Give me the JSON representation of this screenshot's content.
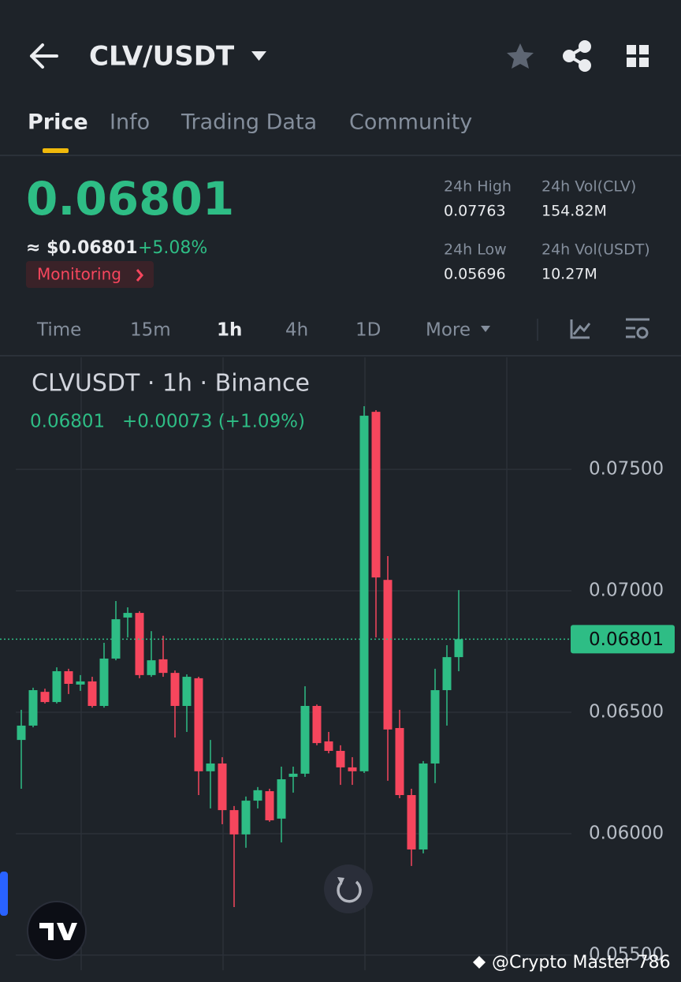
{
  "header": {
    "pair": "CLV/USDT"
  },
  "tabs": [
    "Price",
    "Info",
    "Trading Data",
    "Community"
  ],
  "price": {
    "last": "0.06801",
    "usd": "≈ $0.06801",
    "change": "+5.08%",
    "badge": "Monitoring"
  },
  "stats": [
    {
      "label": "24h High",
      "value": "0.07763"
    },
    {
      "label": "24h Vol(CLV)",
      "value": "154.82M"
    },
    {
      "label": "24h Low",
      "value": "0.05696"
    },
    {
      "label": "24h Vol(USDT)",
      "value": "10.27M"
    }
  ],
  "intervals": [
    "Time",
    "15m",
    "1h",
    "4h",
    "1D",
    "More"
  ],
  "chart_data": {
    "type": "candlestick",
    "title": "CLVUSDT · 1h · Binance",
    "subtitle": [
      "0.06801",
      "+0.00073 (+1.09%)"
    ],
    "up_color": "#2ebd85",
    "down_color": "#f6465d",
    "ylim": [
      0.05438,
      0.07955
    ],
    "yticks": [
      {
        "value": 0.055,
        "label": "0.05500"
      },
      {
        "value": 0.06,
        "label": "0.06000"
      },
      {
        "value": 0.065,
        "label": "0.06500"
      },
      {
        "value": 0.07,
        "label": "0.07000"
      },
      {
        "value": 0.075,
        "label": "0.07500"
      }
    ],
    "grid": true,
    "price_line": {
      "value": 0.06801,
      "label": "0.06801"
    },
    "open": [
      0.06386,
      0.06445,
      0.06584,
      0.06542,
      0.06669,
      0.06614,
      0.06627,
      0.06526,
      0.06721,
      0.0689,
      0.06909,
      0.06653,
      0.06718,
      0.06662,
      0.06526,
      0.0664,
      0.06257,
      0.06289,
      0.06097,
      0.05997,
      0.06136,
      0.06175,
      0.06062,
      0.06234,
      0.06247,
      0.06526,
      0.0638,
      0.06341,
      0.06273,
      0.06257,
      0.07737,
      0.07045,
      0.06435,
      0.06159,
      0.05935,
      0.06289,
      0.06591,
      0.06727
    ],
    "high": [
      0.0651,
      0.06601,
      0.06597,
      0.06685,
      0.06679,
      0.06653,
      0.06646,
      0.06786,
      0.06958,
      0.06932,
      0.06916,
      0.06834,
      0.06815,
      0.06672,
      0.06656,
      0.06646,
      0.06386,
      0.06315,
      0.06114,
      0.06153,
      0.06192,
      0.06185,
      0.06276,
      0.06276,
      0.06607,
      0.06532,
      0.06419,
      0.06364,
      0.06315,
      0.0776,
      0.07744,
      0.07143,
      0.0651,
      0.06185,
      0.06299,
      0.06679,
      0.06776,
      0.07003
    ],
    "low": [
      0.06185,
      0.06438,
      0.06536,
      0.06536,
      0.06575,
      0.06588,
      0.06519,
      0.06519,
      0.06714,
      0.06808,
      0.0664,
      0.06646,
      0.06646,
      0.06396,
      0.06419,
      0.06159,
      0.06104,
      0.06039,
      0.05698,
      0.05942,
      0.06104,
      0.06049,
      0.05964,
      0.06169,
      0.06234,
      0.06364,
      0.06331,
      0.06201,
      0.06201,
      0.0625,
      0.06808,
      0.06218,
      0.06146,
      0.05867,
      0.05919,
      0.06208,
      0.06445,
      0.06669
    ],
    "close": [
      0.06445,
      0.06591,
      0.06542,
      0.06669,
      0.06617,
      0.06627,
      0.06526,
      0.06721,
      0.06883,
      0.06909,
      0.06653,
      0.06714,
      0.06662,
      0.06526,
      0.06646,
      0.06257,
      0.06289,
      0.06097,
      0.05997,
      0.06136,
      0.06179,
      0.06055,
      0.06224,
      0.06247,
      0.06526,
      0.06373,
      0.06341,
      0.06273,
      0.06257,
      0.07721,
      0.07055,
      0.06429,
      0.06159,
      0.05935,
      0.06289,
      0.06591,
      0.06727,
      0.06801
    ]
  },
  "watermark": "@Crypto Master 786"
}
